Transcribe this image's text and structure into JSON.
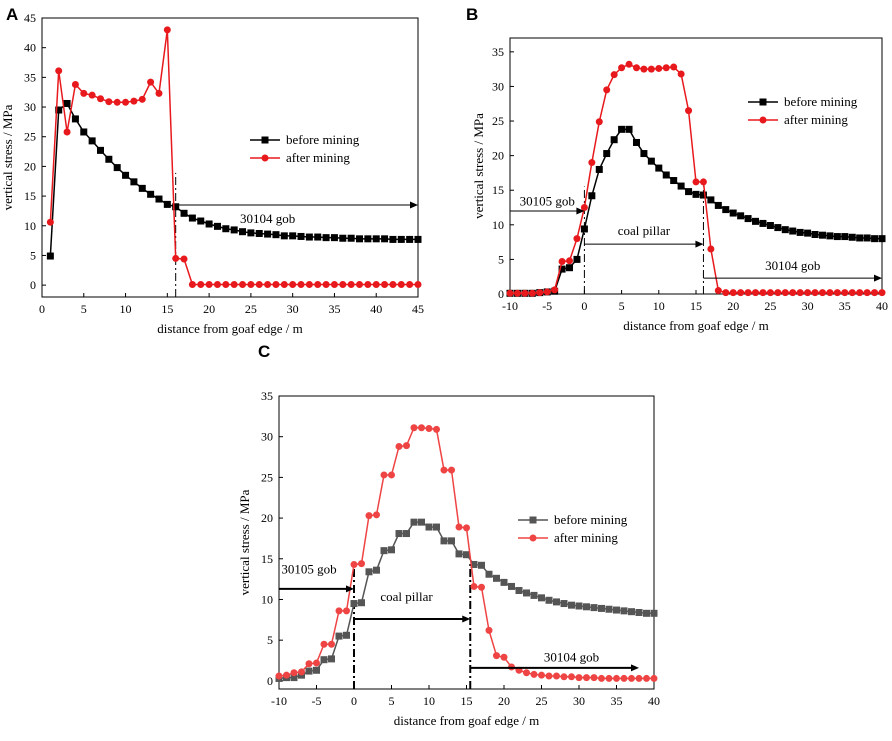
{
  "figure_title": "",
  "colors": {
    "before": "#000000",
    "after": "#e8191d",
    "before_C": "#555555",
    "after_C": "#ef4444",
    "axis": "#000000"
  },
  "chart_data": [
    {
      "panel": "A",
      "type": "line",
      "xlabel": "distance from goaf edge / m",
      "ylabel": "vertical stress / MPa",
      "xlim": [
        0,
        45
      ],
      "ylim": [
        -2,
        45
      ],
      "xticks": [
        0,
        5,
        10,
        15,
        20,
        25,
        30,
        35,
        40,
        45
      ],
      "yticks": [
        0,
        5,
        10,
        15,
        20,
        25,
        30,
        35,
        40,
        45
      ],
      "legend": [
        "before mining",
        "after mining"
      ],
      "series": [
        {
          "name": "before mining",
          "x": [
            1,
            2,
            3,
            4,
            5,
            6,
            7,
            8,
            9,
            10,
            11,
            12,
            13,
            14,
            15,
            16,
            17,
            18,
            19,
            20,
            21,
            22,
            23,
            24,
            25,
            26,
            27,
            28,
            29,
            30,
            31,
            32,
            33,
            34,
            35,
            36,
            37,
            38,
            39,
            40,
            41,
            42,
            43,
            44,
            45
          ],
          "y": [
            4.9,
            29.5,
            30.6,
            28.0,
            25.8,
            24.3,
            22.7,
            21.2,
            19.8,
            18.5,
            17.4,
            16.3,
            15.3,
            14.5,
            13.6,
            13.2,
            12.1,
            11.3,
            10.8,
            10.3,
            9.9,
            9.5,
            9.3,
            9.0,
            8.8,
            8.7,
            8.6,
            8.5,
            8.3,
            8.3,
            8.2,
            8.1,
            8.1,
            8.0,
            8.0,
            7.9,
            7.9,
            7.8,
            7.8,
            7.8,
            7.8,
            7.7,
            7.7,
            7.7,
            7.7
          ]
        },
        {
          "name": "after mining",
          "x": [
            1,
            2,
            3,
            4,
            5,
            6,
            7,
            8,
            9,
            10,
            11,
            12,
            13,
            14,
            15,
            16,
            17,
            18,
            19,
            20,
            21,
            22,
            23,
            24,
            25,
            26,
            27,
            28,
            29,
            30,
            31,
            32,
            33,
            34,
            35,
            36,
            37,
            38,
            39,
            40,
            41,
            42,
            43,
            44,
            45
          ],
          "y": [
            10.6,
            36.1,
            25.8,
            33.8,
            32.3,
            32.0,
            31.4,
            30.9,
            30.8,
            30.8,
            31.0,
            31.3,
            34.2,
            32.3,
            43.0,
            4.5,
            4.4,
            0.1,
            0.1,
            0.1,
            0.1,
            0.1,
            0.1,
            0.1,
            0.1,
            0.1,
            0.1,
            0.1,
            0.1,
            0.1,
            0.1,
            0.1,
            0.1,
            0.1,
            0.1,
            0.1,
            0.1,
            0.1,
            0.1,
            0.1,
            0.1,
            0.1,
            0.1,
            0.1,
            0.1
          ]
        }
      ],
      "annotations": [
        {
          "text": "30104 gob",
          "x": 27,
          "y": 10.5,
          "arrow": {
            "from": 16,
            "to": 45,
            "y": 13.5
          }
        }
      ],
      "vlines": [
        16
      ]
    },
    {
      "panel": "B",
      "type": "line",
      "xlabel": "distance from goaf edge / m",
      "ylabel": "vertical stress / MPa",
      "xlim": [
        -10,
        40
      ],
      "ylim": [
        0,
        37
      ],
      "xticks": [
        -10,
        -5,
        0,
        5,
        10,
        15,
        20,
        25,
        30,
        35,
        40
      ],
      "yticks": [
        0,
        5,
        10,
        15,
        20,
        25,
        30,
        35
      ],
      "legend": [
        "before mining",
        "after mining"
      ],
      "series": [
        {
          "name": "before mining",
          "x": [
            -10,
            -9,
            -8,
            -7,
            -6,
            -5,
            -4,
            -3,
            -2,
            -1,
            0,
            1,
            2,
            3,
            4,
            5,
            6,
            7,
            8,
            9,
            10,
            11,
            12,
            13,
            14,
            15,
            16,
            17,
            18,
            19,
            20,
            21,
            22,
            23,
            24,
            25,
            26,
            27,
            28,
            29,
            30,
            31,
            32,
            33,
            34,
            35,
            36,
            37,
            38,
            39,
            40
          ],
          "y": [
            0.1,
            0.1,
            0.1,
            0.1,
            0.2,
            0.3,
            0.4,
            3.6,
            3.8,
            5.0,
            9.4,
            14.2,
            18.0,
            20.3,
            22.3,
            23.8,
            23.8,
            21.9,
            20.3,
            19.2,
            18.2,
            17.2,
            16.4,
            15.6,
            14.8,
            14.4,
            14.3,
            13.6,
            12.8,
            12.2,
            11.7,
            11.3,
            10.9,
            10.5,
            10.2,
            9.9,
            9.6,
            9.3,
            9.1,
            8.9,
            8.8,
            8.6,
            8.5,
            8.4,
            8.3,
            8.3,
            8.2,
            8.1,
            8.1,
            8.0,
            8.0
          ]
        },
        {
          "name": "after mining",
          "x": [
            -10,
            -9,
            -8,
            -7,
            -6,
            -5,
            -4,
            -3,
            -2,
            -1,
            0,
            1,
            2,
            3,
            4,
            5,
            6,
            7,
            8,
            9,
            10,
            11,
            12,
            13,
            14,
            15,
            16,
            17,
            18,
            19,
            20,
            21,
            22,
            23,
            24,
            25,
            26,
            27,
            28,
            29,
            30,
            31,
            32,
            33,
            34,
            35,
            36,
            37,
            38,
            39,
            40
          ],
          "y": [
            0.1,
            0.1,
            0.1,
            0.1,
            0.2,
            0.3,
            0.6,
            4.7,
            4.8,
            8.0,
            12.5,
            19.0,
            24.9,
            29.5,
            31.7,
            32.7,
            33.2,
            32.7,
            32.5,
            32.5,
            32.6,
            32.7,
            32.8,
            31.8,
            26.5,
            16.2,
            16.2,
            6.5,
            0.5,
            0.2,
            0.2,
            0.2,
            0.2,
            0.2,
            0.2,
            0.2,
            0.2,
            0.2,
            0.2,
            0.2,
            0.2,
            0.2,
            0.2,
            0.2,
            0.2,
            0.2,
            0.2,
            0.2,
            0.2,
            0.2,
            0.2
          ]
        }
      ],
      "annotations": [
        {
          "text": "30105 gob",
          "x": -5,
          "y": 12.8,
          "arrow": {
            "from": -10,
            "to": 0,
            "y": 12.0
          }
        },
        {
          "text": "coal pillar",
          "x": 8,
          "y": 8.5,
          "arrow": {
            "from": 0,
            "to": 16,
            "y": 7.2
          }
        },
        {
          "text": "30104 gob",
          "x": 28,
          "y": 3.5,
          "arrow": {
            "from": 16,
            "to": 40,
            "y": 2.3
          }
        }
      ],
      "vlines": [
        0,
        16
      ]
    },
    {
      "panel": "C",
      "type": "line",
      "xlabel": "distance from goaf edge / m",
      "ylabel": "vertical stress / MPa",
      "xlim": [
        -10,
        40
      ],
      "ylim": [
        -1,
        35
      ],
      "xticks": [
        -10,
        -5,
        0,
        5,
        10,
        15,
        20,
        25,
        30,
        35,
        40
      ],
      "yticks": [
        0,
        5,
        10,
        15,
        20,
        25,
        30,
        35
      ],
      "legend": [
        "before mining",
        "after mining"
      ],
      "series": [
        {
          "name": "before mining",
          "x": [
            -10,
            -9,
            -8,
            -7,
            -6,
            -5,
            -4,
            -3,
            -2,
            -1,
            0,
            1,
            2,
            3,
            4,
            5,
            6,
            7,
            8,
            9,
            10,
            11,
            12,
            13,
            14,
            15,
            16,
            17,
            18,
            19,
            20,
            21,
            22,
            23,
            24,
            25,
            26,
            27,
            28,
            29,
            30,
            31,
            32,
            33,
            34,
            35,
            36,
            37,
            38,
            39,
            40
          ],
          "y": [
            0.3,
            0.4,
            0.4,
            0.7,
            1.2,
            1.3,
            2.6,
            2.7,
            5.5,
            5.6,
            9.5,
            9.6,
            13.4,
            13.6,
            16.0,
            16.1,
            18.1,
            18.1,
            19.5,
            19.5,
            18.9,
            18.9,
            17.2,
            17.2,
            15.6,
            15.5,
            14.3,
            14.2,
            13.1,
            12.6,
            12.1,
            11.6,
            11.1,
            10.8,
            10.5,
            10.2,
            9.9,
            9.7,
            9.5,
            9.3,
            9.2,
            9.1,
            9.0,
            8.9,
            8.8,
            8.7,
            8.6,
            8.5,
            8.4,
            8.3,
            8.3
          ]
        },
        {
          "name": "after mining",
          "x": [
            -10,
            -9,
            -8,
            -7,
            -6,
            -5,
            -4,
            -3,
            -2,
            -1,
            0,
            1,
            2,
            3,
            4,
            5,
            6,
            7,
            8,
            9,
            10,
            11,
            12,
            13,
            14,
            15,
            16,
            17,
            18,
            19,
            20,
            21,
            22,
            23,
            24,
            25,
            26,
            27,
            28,
            29,
            30,
            31,
            32,
            33,
            34,
            35,
            36,
            37,
            38,
            39,
            40
          ],
          "y": [
            0.6,
            0.7,
            1.0,
            1.1,
            2.1,
            2.2,
            4.5,
            4.5,
            8.6,
            8.6,
            14.3,
            14.4,
            20.3,
            20.4,
            25.3,
            25.3,
            28.8,
            28.9,
            31.1,
            31.1,
            31.0,
            30.9,
            25.9,
            25.9,
            18.9,
            18.8,
            11.6,
            11.5,
            6.2,
            3.1,
            2.9,
            1.7,
            1.3,
            1.0,
            0.8,
            0.7,
            0.6,
            0.6,
            0.5,
            0.5,
            0.4,
            0.4,
            0.4,
            0.3,
            0.3,
            0.3,
            0.3,
            0.3,
            0.3,
            0.3,
            0.3
          ]
        }
      ],
      "annotations": [
        {
          "text": "30105 gob",
          "x": -6,
          "y": 13.2,
          "arrow": {
            "from": -10,
            "to": 0,
            "y": 11.3
          }
        },
        {
          "text": "coal pillar",
          "x": 7,
          "y": 9.8,
          "arrow": {
            "from": 0,
            "to": 15.5,
            "y": 7.6
          }
        },
        {
          "text": "30104 gob",
          "x": 29,
          "y": 2.4,
          "arrow": {
            "from": 15.5,
            "to": 38,
            "y": 1.6
          }
        }
      ],
      "vlines": [
        0,
        15.5
      ]
    }
  ]
}
